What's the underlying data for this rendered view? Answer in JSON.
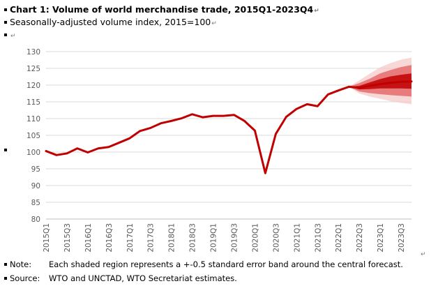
{
  "header": {
    "title": "Chart 1: Volume of world merchandise trade, 2015Q1-2023Q4",
    "subtitle": "Seasonally-adjusted volume index, 2015=100"
  },
  "footer": {
    "note_label": "Note:",
    "note_text": "Each shaded region represents a +-0.5 standard error band around the central forecast.",
    "source_label": "Source:",
    "source_text": "WTO and UNCTAD, WTO Secretariat estimates."
  },
  "icons": {
    "paragraph_mark": "↵",
    "bullet": "square-bullet"
  },
  "colors": {
    "line": "#c00000",
    "band_inner": "#c00000",
    "band_mid": "#e35d5d",
    "band_outer": "#f6c9c9",
    "grid": "#d9d9d9",
    "axis_text": "#595959"
  },
  "chart_data": {
    "type": "line",
    "title": "Chart 1: Volume of world merchandise trade, 2015Q1-2023Q4",
    "ylabel": "",
    "xlabel": "",
    "ylim": [
      80,
      130
    ],
    "yticks": [
      80,
      85,
      90,
      95,
      100,
      105,
      110,
      115,
      120,
      125,
      130
    ],
    "grid": true,
    "legend": "none",
    "x": [
      "2015Q1",
      "2015Q2",
      "2015Q3",
      "2015Q4",
      "2016Q1",
      "2016Q2",
      "2016Q3",
      "2016Q4",
      "2017Q1",
      "2017Q2",
      "2017Q3",
      "2017Q4",
      "2018Q1",
      "2018Q2",
      "2018Q3",
      "2018Q4",
      "2019Q1",
      "2019Q2",
      "2019Q3",
      "2019Q4",
      "2020Q1",
      "2020Q2",
      "2020Q3",
      "2020Q4",
      "2021Q1",
      "2021Q2",
      "2021Q3",
      "2021Q4",
      "2022Q1",
      "2022Q2",
      "2022Q3",
      "2022Q4",
      "2023Q1",
      "2023Q2",
      "2023Q3",
      "2023Q4"
    ],
    "x_tick_labels": [
      "2015Q1",
      "2015Q3",
      "2016Q1",
      "2016Q3",
      "2017Q1",
      "2017Q3",
      "2018Q1",
      "2018Q3",
      "2019Q1",
      "2019Q3",
      "2020Q1",
      "2020Q3",
      "2021Q1",
      "2021Q3",
      "2022Q1",
      "2022Q3",
      "2023Q1",
      "2023Q3"
    ],
    "series": [
      {
        "values": [
          100.3,
          99.1,
          99.6,
          101.1,
          99.9,
          101.1,
          101.5,
          102.8,
          104.1,
          106.3,
          107.2,
          108.6,
          109.3,
          110.1,
          111.3,
          110.4,
          110.8,
          110.8,
          111.1,
          109.3,
          106.4,
          93.7,
          105.4,
          110.5,
          112.9,
          114.3,
          113.7,
          117.2,
          118.4,
          119.5,
          119.2,
          119.8,
          120.3,
          120.7,
          121.0,
          121.1
        ]
      }
    ],
    "forecast_bands": {
      "x": [
        "2022Q2",
        "2022Q3",
        "2022Q4",
        "2023Q1",
        "2023Q2",
        "2023Q3",
        "2023Q4"
      ],
      "center": [
        119.5,
        119.2,
        119.8,
        120.3,
        120.7,
        121.0,
        121.1
      ],
      "bands": [
        {
          "lower": [
            119.5,
            117.5,
            116.6,
            115.9,
            115.2,
            114.7,
            114.3
          ],
          "upper": [
            119.5,
            121.4,
            123.4,
            125.3,
            126.6,
            127.6,
            128.2
          ]
        },
        {
          "lower": [
            119.5,
            118.1,
            117.6,
            117.3,
            117.0,
            116.8,
            116.6
          ],
          "upper": [
            119.5,
            120.6,
            121.9,
            123.5,
            124.5,
            125.4,
            126.0
          ]
        },
        {
          "lower": [
            119.5,
            118.7,
            118.8,
            119.0,
            119.0,
            119.0,
            118.9
          ],
          "upper": [
            119.5,
            119.8,
            120.8,
            121.8,
            122.6,
            123.1,
            123.5
          ]
        }
      ]
    }
  }
}
